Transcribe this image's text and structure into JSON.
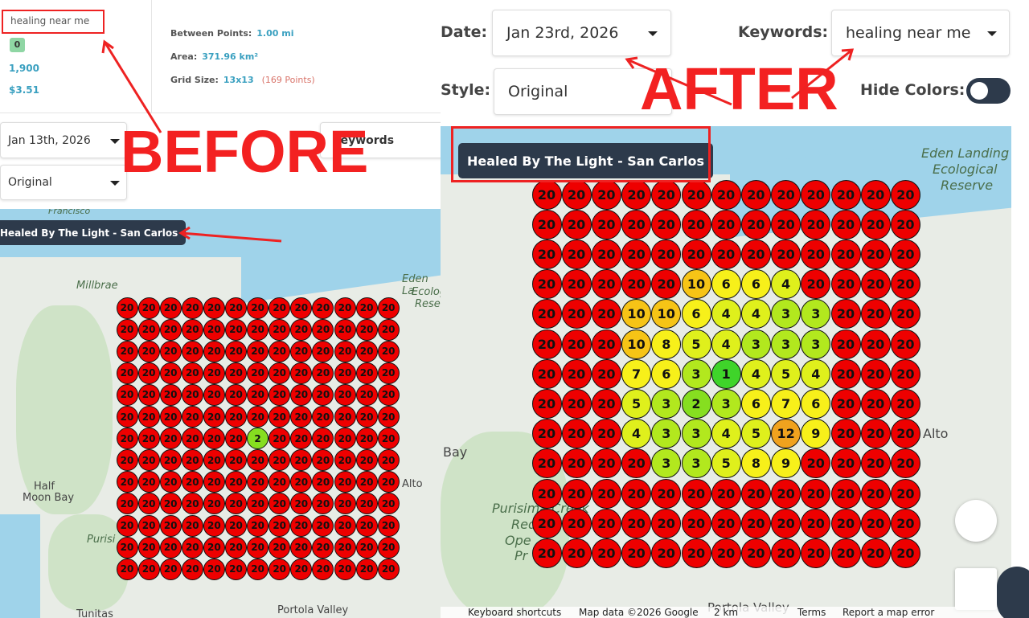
{
  "annotations": {
    "before": "BEFORE",
    "after": "AFTER"
  },
  "before": {
    "search": "healing near me",
    "badge": "0",
    "volume": "1,900",
    "cpc": "$3.51",
    "stats": [
      {
        "label": "Between Points:",
        "value": "1.00 mi"
      },
      {
        "label": "Area:",
        "value": "371.96 km²"
      },
      {
        "label": "Grid Size:",
        "value": "13x13",
        "note": "(169 Points)"
      }
    ],
    "date": "Jan 13th, 2026",
    "keywords": "Keywords",
    "style": "Original",
    "business": "Healed By The Light - San Carlos",
    "map_labels": [
      "Francisco",
      "Millbrae",
      "Eden La",
      "Ecolog",
      "Reser",
      "Half",
      "Moon Bay",
      "Alto",
      "Purisi",
      "Tunitas",
      "Portola Valley"
    ],
    "grid": [
      [
        20,
        20,
        20,
        20,
        20,
        20,
        20,
        20,
        20,
        20,
        20,
        20,
        20
      ],
      [
        20,
        20,
        20,
        20,
        20,
        20,
        20,
        20,
        20,
        20,
        20,
        20,
        20
      ],
      [
        20,
        20,
        20,
        20,
        20,
        20,
        20,
        20,
        20,
        20,
        20,
        20,
        20
      ],
      [
        20,
        20,
        20,
        20,
        20,
        20,
        20,
        20,
        20,
        20,
        20,
        20,
        20
      ],
      [
        20,
        20,
        20,
        20,
        20,
        20,
        20,
        20,
        20,
        20,
        20,
        20,
        20
      ],
      [
        20,
        20,
        20,
        20,
        20,
        20,
        20,
        20,
        20,
        20,
        20,
        20,
        20
      ],
      [
        20,
        20,
        20,
        20,
        20,
        20,
        2,
        20,
        20,
        20,
        20,
        20,
        20
      ],
      [
        20,
        20,
        20,
        20,
        20,
        20,
        20,
        20,
        20,
        20,
        20,
        20,
        20
      ],
      [
        20,
        20,
        20,
        20,
        20,
        20,
        20,
        20,
        20,
        20,
        20,
        20,
        20
      ],
      [
        20,
        20,
        20,
        20,
        20,
        20,
        20,
        20,
        20,
        20,
        20,
        20,
        20
      ],
      [
        20,
        20,
        20,
        20,
        20,
        20,
        20,
        20,
        20,
        20,
        20,
        20,
        20
      ],
      [
        20,
        20,
        20,
        20,
        20,
        20,
        20,
        20,
        20,
        20,
        20,
        20,
        20
      ],
      [
        20,
        20,
        20,
        20,
        20,
        20,
        20,
        20,
        20,
        20,
        20,
        20,
        20
      ]
    ]
  },
  "after": {
    "date_label": "Date:",
    "date": "Jan 23rd, 2026",
    "keywords_label": "Keywords:",
    "keywords": "healing near me",
    "style_label": "Style:",
    "style": "Original",
    "hide_colors": "Hide Colors:",
    "business": "Healed By The Light - San Carlos",
    "map_labels": [
      "Eden Landing",
      "Ecological",
      "Reserve",
      "Alto",
      "Bay",
      "Purisima Creek",
      "Red",
      "Ope",
      "Pr",
      "Portola Valley"
    ],
    "footer": [
      "Keyboard shortcuts",
      "Map data ©2026 Google",
      "2 km",
      "Terms",
      "Report a map error"
    ],
    "grid": [
      [
        20,
        20,
        20,
        20,
        20,
        20,
        20,
        20,
        20,
        20,
        20,
        20,
        20
      ],
      [
        20,
        20,
        20,
        20,
        20,
        20,
        20,
        20,
        20,
        20,
        20,
        20,
        20
      ],
      [
        20,
        20,
        20,
        20,
        20,
        20,
        20,
        20,
        20,
        20,
        20,
        20,
        20
      ],
      [
        20,
        20,
        20,
        20,
        20,
        10,
        6,
        6,
        4,
        20,
        20,
        20,
        20
      ],
      [
        20,
        20,
        20,
        10,
        10,
        6,
        4,
        4,
        3,
        3,
        20,
        20,
        20
      ],
      [
        20,
        20,
        20,
        10,
        8,
        5,
        4,
        3,
        3,
        3,
        20,
        20,
        20
      ],
      [
        20,
        20,
        20,
        7,
        6,
        3,
        1,
        4,
        5,
        4,
        20,
        20,
        20
      ],
      [
        20,
        20,
        20,
        5,
        3,
        2,
        3,
        6,
        7,
        6,
        20,
        20,
        20
      ],
      [
        20,
        20,
        20,
        4,
        3,
        3,
        4,
        5,
        12,
        9,
        20,
        20,
        20
      ],
      [
        20,
        20,
        20,
        20,
        3,
        3,
        5,
        8,
        9,
        20,
        20,
        20,
        20
      ],
      [
        20,
        20,
        20,
        20,
        20,
        20,
        20,
        20,
        20,
        20,
        20,
        20,
        20
      ],
      [
        20,
        20,
        20,
        20,
        20,
        20,
        20,
        20,
        20,
        20,
        20,
        20,
        20
      ],
      [
        20,
        20,
        20,
        20,
        20,
        20,
        20,
        20,
        20,
        20,
        20,
        20,
        20
      ]
    ]
  }
}
